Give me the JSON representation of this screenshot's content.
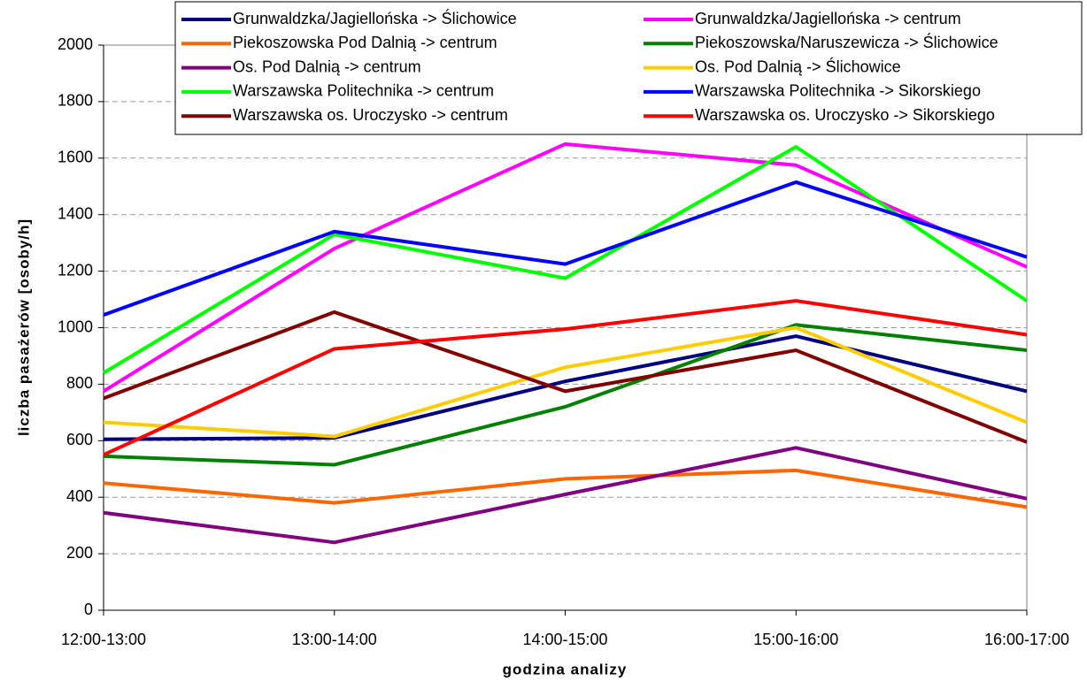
{
  "chart_data": {
    "type": "line",
    "x_label": "godzina analizy",
    "y_label": "liczba pasażerów [osoby/h]",
    "categories": [
      "12:00-13:00",
      "13:00-14:00",
      "14:00-15:00",
      "15:00-16:00",
      "16:00-17:00"
    ],
    "ylim": [
      0,
      2000
    ],
    "yticks": [
      0,
      200,
      400,
      600,
      800,
      1000,
      1200,
      1400,
      1600,
      1800,
      2000
    ],
    "grid": true,
    "legend": "top",
    "series": [
      {
        "name": "Grunwaldzka/Jagiellońska -> Ślichowice",
        "color": "#000080",
        "values": [
          605,
          610,
          810,
          970,
          775
        ]
      },
      {
        "name": "Grunwaldzka/Jagiellońska -> centrum",
        "color": "#ff00ff",
        "values": [
          775,
          1280,
          1650,
          1575,
          1215
        ]
      },
      {
        "name": "Piekoszowska Pod Dalnią -> centrum",
        "color": "#ff6600",
        "values": [
          450,
          380,
          465,
          495,
          365
        ]
      },
      {
        "name": "Piekoszowska/Naruszewicza -> Ślichowice",
        "color": "#008000",
        "values": [
          545,
          515,
          720,
          1010,
          920
        ]
      },
      {
        "name": "Os. Pod Dalnią -> centrum",
        "color": "#800080",
        "values": [
          345,
          240,
          410,
          575,
          395
        ]
      },
      {
        "name": "Os. Pod Dalnią -> Ślichowice",
        "color": "#ffcc00",
        "values": [
          665,
          615,
          860,
          1000,
          665
        ]
      },
      {
        "name": "Warszawska Politechnika -> centrum",
        "color": "#00ff00",
        "values": [
          840,
          1330,
          1175,
          1640,
          1095
        ]
      },
      {
        "name": "Warszawska Politechnika -> Sikorskiego",
        "color": "#0000ff",
        "values": [
          1045,
          1340,
          1225,
          1515,
          1250
        ]
      },
      {
        "name": "Warszawska os. Uroczysko -> centrum",
        "color": "#800000",
        "values": [
          750,
          1055,
          775,
          920,
          595
        ]
      },
      {
        "name": "Warszawska os. Uroczysko -> Sikorskiego",
        "color": "#ff0000",
        "values": [
          550,
          925,
          995,
          1095,
          975
        ]
      }
    ]
  }
}
